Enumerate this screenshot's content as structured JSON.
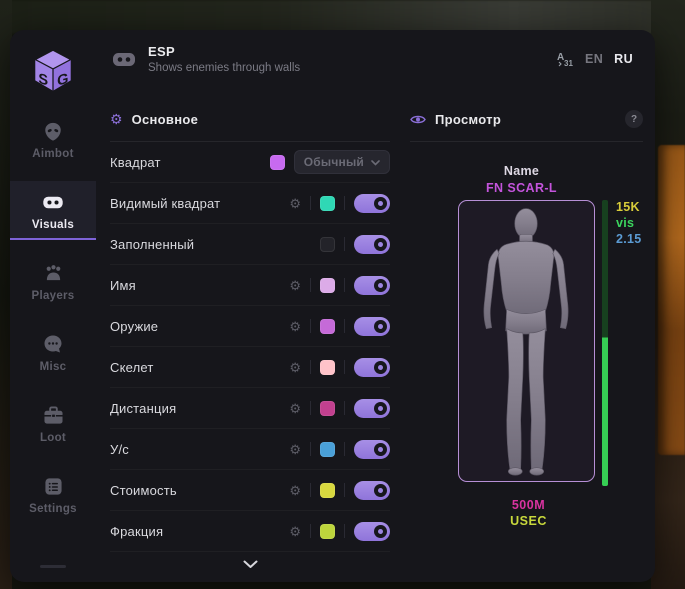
{
  "header": {
    "title": "ESP",
    "subtitle": "Shows enemies through walls",
    "lang_en": "EN",
    "lang_ru": "RU"
  },
  "sidebar": {
    "items": [
      {
        "label": "Aimbot",
        "icon": "alien-icon",
        "active": false
      },
      {
        "label": "Visuals",
        "icon": "goggles-icon",
        "active": true
      },
      {
        "label": "Players",
        "icon": "players-icon",
        "active": false
      },
      {
        "label": "Misc",
        "icon": "chat-icon",
        "active": false
      },
      {
        "label": "Loot",
        "icon": "briefcase-icon",
        "active": false
      },
      {
        "label": "Settings",
        "icon": "list-icon",
        "active": false
      }
    ]
  },
  "main_panel": {
    "title": "Основное",
    "rows": [
      {
        "label": "Квадрат",
        "gear": false,
        "swatch": "#c76af0",
        "control": "dropdown",
        "dropdown_value": "Обычный"
      },
      {
        "label": "Видимый квадрат",
        "gear": true,
        "swatch": "#2fd8b5",
        "control": "toggle",
        "on": true
      },
      {
        "label": "Заполненный",
        "gear": false,
        "swatch": "#232329",
        "control": "toggle",
        "on": true
      },
      {
        "label": "Имя",
        "gear": true,
        "swatch": "#dcabe8",
        "control": "toggle",
        "on": true
      },
      {
        "label": "Оружие",
        "gear": true,
        "swatch": "#c56ad8",
        "control": "toggle",
        "on": true
      },
      {
        "label": "Скелет",
        "gear": true,
        "swatch": "#ffc3c9",
        "control": "toggle",
        "on": true
      },
      {
        "label": "Дистанция",
        "gear": true,
        "swatch": "#c2408f",
        "control": "toggle",
        "on": true
      },
      {
        "label": "У/с",
        "gear": true,
        "swatch": "#4aa0d8",
        "control": "toggle",
        "on": true
      },
      {
        "label": "Стоимость",
        "gear": true,
        "swatch": "#d8d83f",
        "control": "toggle",
        "on": true
      },
      {
        "label": "Фракция",
        "gear": true,
        "swatch": "#bdd53c",
        "control": "toggle",
        "on": true
      }
    ]
  },
  "preview_panel": {
    "title": "Просмотр",
    "help": "?",
    "target_label": "Name",
    "target_name": "FN SCAR-L",
    "stats": [
      {
        "text": "15K",
        "color": "#d8cc3a"
      },
      {
        "text": "vis",
        "color": "#3bd45e"
      },
      {
        "text": "2.15",
        "color": "#5b9bd3"
      }
    ],
    "distance": "500M",
    "distance_color": "#d833a0",
    "faction": "USEC",
    "faction_color": "#c8d83c",
    "health_fill_pct": 52
  },
  "colors": {
    "accent": "#8b6fd8",
    "toggle_on": "#9c85e0",
    "health_bright": "#36ce54",
    "health_dark": "#17401f"
  }
}
